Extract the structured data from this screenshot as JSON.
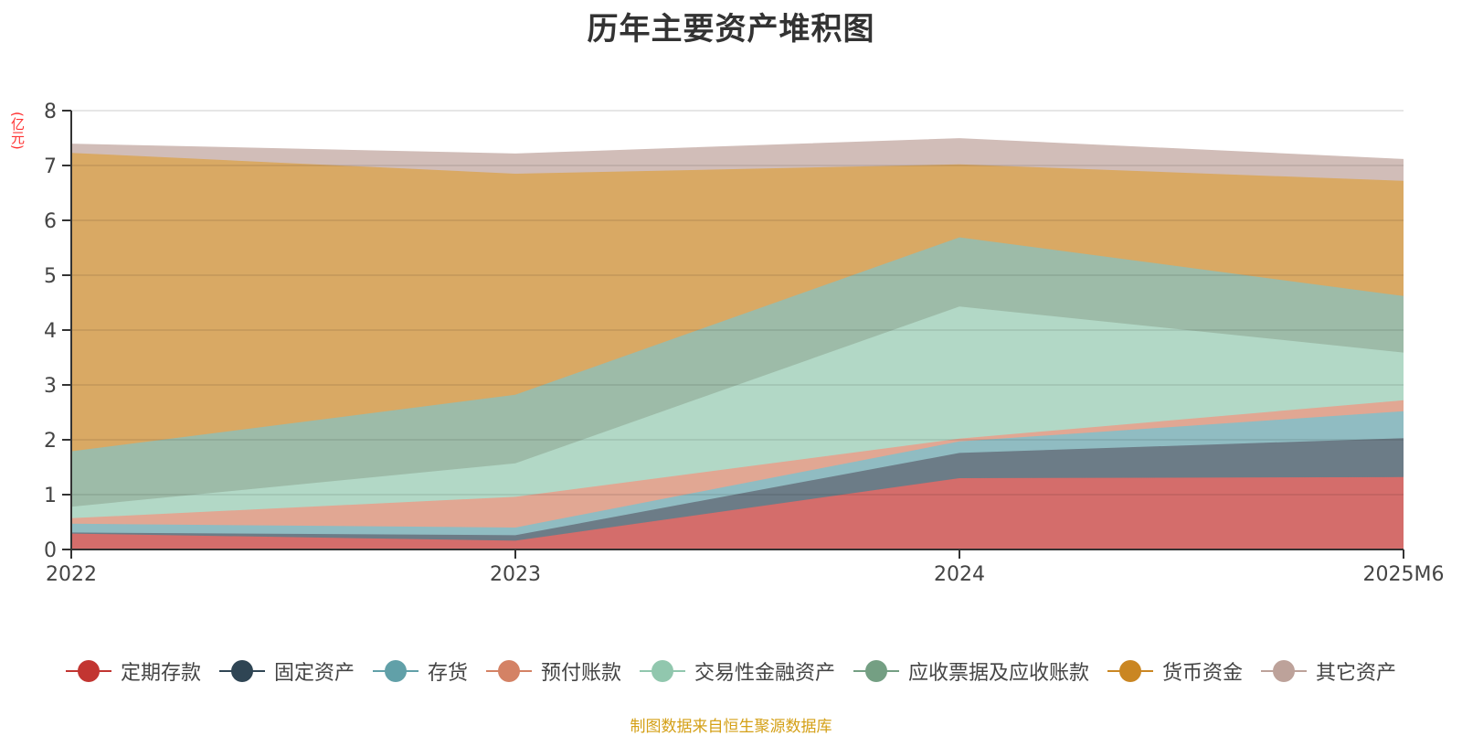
{
  "title": "历年主要资产堆积图",
  "unit_label": "(亿元)",
  "source": "制图数据来自恒生聚源数据库",
  "chart_data": {
    "type": "area",
    "stacked": true,
    "title": "历年主要资产堆积图",
    "xlabel": "",
    "ylabel": "(亿元)",
    "ylim": [
      0,
      8
    ],
    "yticks": [
      0,
      1,
      2,
      3,
      4,
      5,
      6,
      7,
      8
    ],
    "categories": [
      "2022",
      "2023",
      "2024",
      "2025M6"
    ],
    "grid": true,
    "legend_position": "bottom",
    "series": [
      {
        "name": "定期存款",
        "color": "#c23531",
        "fill": "#d46d6b",
        "values": [
          0.29,
          0.16,
          1.3,
          1.32
        ]
      },
      {
        "name": "固定资产",
        "color": "#2f4554",
        "fill": "#6c7c87",
        "values": [
          0.02,
          0.1,
          0.46,
          0.71
        ]
      },
      {
        "name": "存货",
        "color": "#61a0a8",
        "fill": "#90bcc2",
        "values": [
          0.16,
          0.14,
          0.21,
          0.49
        ]
      },
      {
        "name": "预付账款",
        "color": "#d48265",
        "fill": "#e1a793",
        "values": [
          0.1,
          0.56,
          0.05,
          0.2
        ]
      },
      {
        "name": "交易性金融资产",
        "color": "#91c7ae",
        "fill": "#b2d8c6",
        "values": [
          0.21,
          0.61,
          2.41,
          0.87
        ]
      },
      {
        "name": "应收票据及应收账款",
        "color": "#749f83",
        "fill": "#9dbba8",
        "values": [
          1.01,
          1.25,
          1.26,
          1.03
        ]
      },
      {
        "name": "货币资金",
        "color": "#ca8622",
        "fill": "#d9a964",
        "values": [
          5.44,
          4.03,
          1.33,
          2.1
        ]
      },
      {
        "name": "其它资产",
        "color": "#bda29a",
        "fill": "#d1bdb8",
        "values": [
          0.16,
          0.36,
          0.47,
          0.39
        ]
      }
    ]
  }
}
